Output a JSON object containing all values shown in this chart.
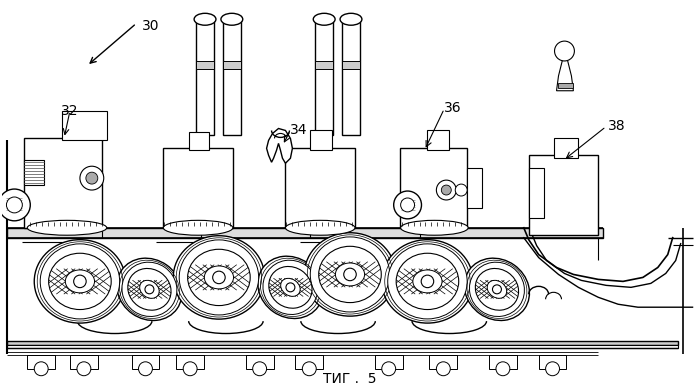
{
  "title": "ΤИГ .  5",
  "bg_color": "#ffffff",
  "line_color": "#000000",
  "label_30": "30",
  "label_32": "32",
  "label_34": "34",
  "label_36": "36",
  "label_38": "38",
  "figsize": [
    6.99,
    3.92
  ],
  "dpi": 100
}
